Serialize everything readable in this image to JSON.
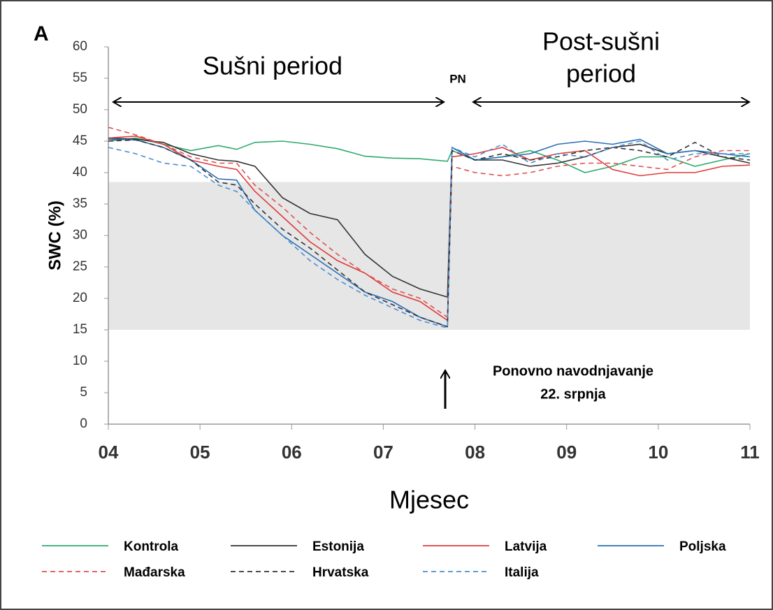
{
  "chart_data": {
    "type": "line",
    "panel_label": "A",
    "y_label": "SWC (%)",
    "x_label": "Mjesec",
    "annotations": {
      "drought": "Sušni period",
      "post_line1": "Post-sušni",
      "post_line2": "period",
      "pn": "PN",
      "rewater_line1": "Ponovno navodnjavanje",
      "rewater_line2": "22. srpnja"
    },
    "band": [
      15,
      38.5
    ],
    "band_color": "#e6e6e6",
    "xlim": [
      4,
      11
    ],
    "xticks": [
      {
        "value": 4,
        "label": "04"
      },
      {
        "value": 5,
        "label": "05"
      },
      {
        "value": 6,
        "label": "06"
      },
      {
        "value": 7,
        "label": "07"
      },
      {
        "value": 8,
        "label": "08"
      },
      {
        "value": 9,
        "label": "09"
      },
      {
        "value": 10,
        "label": "10"
      },
      {
        "value": 11,
        "label": "11"
      }
    ],
    "ylim": [
      0,
      60
    ],
    "yticks": [
      0,
      5,
      10,
      15,
      20,
      25,
      30,
      35,
      40,
      45,
      50,
      55,
      60
    ],
    "x": [
      4.0,
      4.3,
      4.6,
      4.9,
      5.2,
      5.4,
      5.6,
      5.9,
      6.2,
      6.5,
      6.8,
      7.1,
      7.4,
      7.7,
      7.75,
      8.0,
      8.3,
      8.6,
      8.9,
      9.2,
      9.5,
      9.8,
      10.1,
      10.4,
      10.7,
      11.0
    ],
    "series": [
      {
        "name": "Kontrola",
        "color": "#2eaa6e",
        "dash": false,
        "values": [
          45,
          45.5,
          44.5,
          43.5,
          44.3,
          43.7,
          44.8,
          45,
          44.5,
          43.8,
          42.6,
          42.3,
          42.2,
          41.8,
          43.5,
          42,
          42.5,
          43.5,
          42,
          40,
          41,
          42.5,
          42.5,
          41,
          42,
          43
        ]
      },
      {
        "name": "Estonija",
        "color": "#333333",
        "dash": false,
        "values": [
          45.5,
          45.3,
          44.8,
          43,
          42,
          41.8,
          41,
          36,
          33.5,
          32.5,
          27,
          23.5,
          21.5,
          20.2,
          44,
          42,
          42,
          41,
          41.5,
          42.5,
          44,
          44.5,
          43,
          43.5,
          42.5,
          41.5
        ]
      },
      {
        "name": "Latvija",
        "color": "#e03a3a",
        "dash": false,
        "values": [
          45.5,
          45.8,
          44.5,
          42,
          41,
          40.5,
          37,
          33,
          29,
          26,
          24,
          21,
          19.5,
          16.5,
          42.5,
          43,
          44,
          42,
          43,
          43.5,
          40.5,
          39.5,
          40,
          40,
          41,
          41.2
        ]
      },
      {
        "name": "Poljska",
        "color": "#2a6fb5",
        "dash": false,
        "values": [
          45.3,
          45.2,
          44,
          42,
          39,
          38.8,
          34,
          30,
          27,
          24,
          21,
          19.5,
          17,
          15.5,
          44,
          42,
          42.5,
          43,
          44.5,
          45,
          44.5,
          45.3,
          43,
          43.5,
          43,
          42.5
        ]
      },
      {
        "name": "Mađarska",
        "color": "#e05050",
        "dash": true,
        "values": [
          47.2,
          46,
          44.5,
          42.5,
          41.5,
          41.5,
          38,
          34.5,
          30.5,
          27,
          24,
          21.5,
          20,
          17,
          41,
          40,
          39.5,
          40,
          41,
          41.5,
          41.5,
          41,
          40.5,
          42.5,
          43.5,
          43.5
        ]
      },
      {
        "name": "Hrvatska",
        "color": "#333333",
        "dash": true,
        "values": [
          45,
          45.2,
          44,
          42,
          38.5,
          38,
          35,
          31,
          28,
          24.5,
          21,
          19,
          17,
          15.5,
          43.5,
          42,
          43,
          42,
          42.5,
          43.5,
          44,
          43.5,
          42.5,
          44.8,
          42.5,
          42
        ]
      },
      {
        "name": "Italija",
        "color": "#4a8fd0",
        "dash": true,
        "values": [
          44,
          43,
          41.5,
          41,
          38,
          37,
          34,
          30,
          26,
          23,
          20.5,
          18.5,
          16.5,
          15.3,
          44,
          42.5,
          44.5,
          41.5,
          43,
          42.5,
          44,
          45,
          42,
          43,
          43,
          43
        ]
      }
    ]
  }
}
